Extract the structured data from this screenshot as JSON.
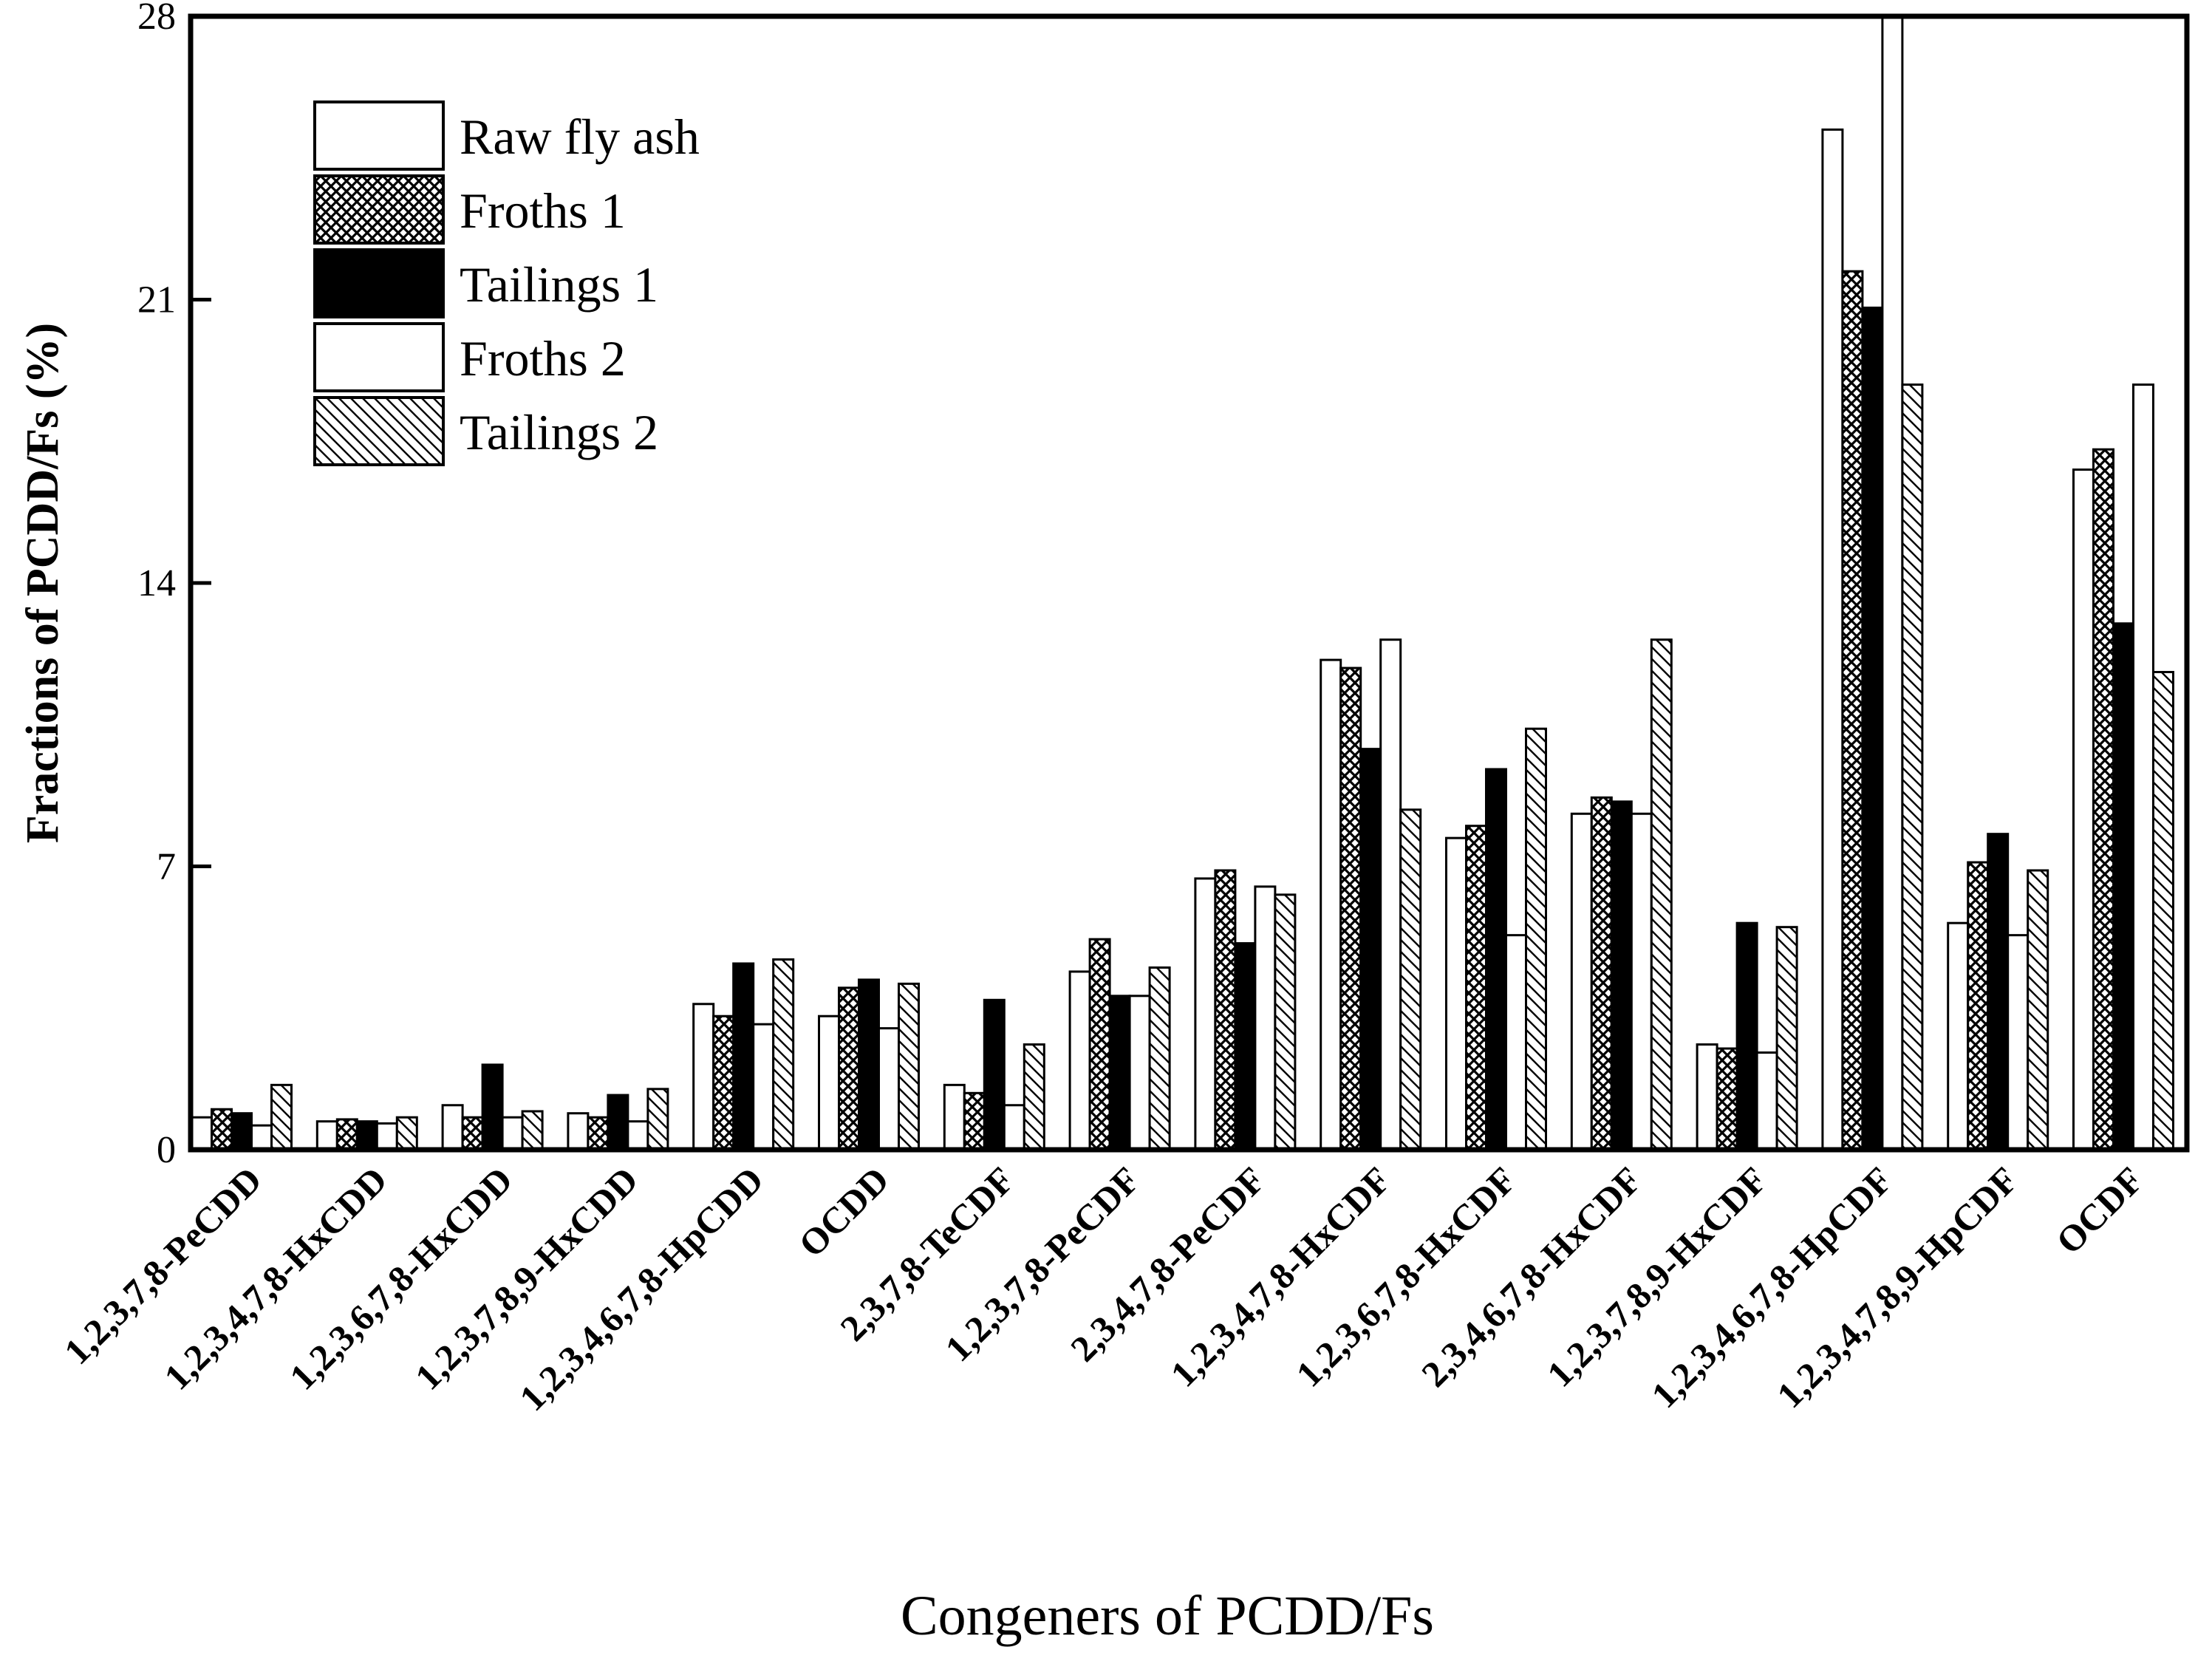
{
  "chart_data": {
    "type": "bar",
    "title": "",
    "xlabel": "Congeners of PCDD/Fs",
    "ylabel": "Fractions of PCDD/Fs (%)",
    "ylim": [
      0,
      28
    ],
    "yticks": [
      0,
      7,
      14,
      21,
      28
    ],
    "grid": false,
    "legend_position": "top-left",
    "categories": [
      "1,2,3,7,8-PeCDD",
      "1,2,3,4,7,8-HxCDD",
      "1,2,3,6,7,8-HxCDD",
      "1,2,3,7,8,9-HxCDD",
      "1,2,3,4,6,7,8-HpCDD",
      "OCDD",
      "2,3,7,8-TeCDF",
      "1,2,3,7,8-PeCDF",
      "2,3,4,7,8-PeCDF",
      "1,2,3,4,7,8-HxCDF",
      "1,2,3,6,7,8-HxCDF",
      "2,3,4,6,7,8-HxCDF",
      "1,2,3,7,8,9-HxCDF",
      "1,2,3,4,6,7,8-HpCDF",
      "1,2,3,4,7,8,9-HpCDF",
      "OCDF"
    ],
    "series": [
      {
        "name": "Raw fly ash",
        "pattern": "open",
        "values": [
          0.8,
          0.7,
          1.1,
          0.9,
          3.6,
          3.3,
          1.6,
          4.4,
          6.7,
          12.1,
          7.7,
          8.3,
          2.6,
          25.2,
          5.6,
          16.8
        ]
      },
      {
        "name": "Froths 1",
        "pattern": "crosshatch",
        "values": [
          1.0,
          0.75,
          0.8,
          0.8,
          3.3,
          4.0,
          1.4,
          5.2,
          6.9,
          11.9,
          8.0,
          8.7,
          2.5,
          21.7,
          7.1,
          17.3
        ]
      },
      {
        "name": "Tailings 1",
        "pattern": "solid",
        "values": [
          0.9,
          0.7,
          2.1,
          1.35,
          4.6,
          4.2,
          3.7,
          3.8,
          5.1,
          9.9,
          9.4,
          8.6,
          5.6,
          20.8,
          7.8,
          13.0
        ]
      },
      {
        "name": "Froths 2",
        "pattern": "open",
        "values": [
          0.6,
          0.65,
          0.8,
          0.7,
          3.1,
          3.0,
          1.1,
          3.8,
          6.5,
          12.6,
          5.3,
          8.3,
          2.4,
          28.0,
          5.3,
          18.9
        ]
      },
      {
        "name": "Tailings 2",
        "pattern": "diagonal",
        "values": [
          1.6,
          0.8,
          0.95,
          1.5,
          4.7,
          4.1,
          2.6,
          4.5,
          6.3,
          8.4,
          10.4,
          12.6,
          5.5,
          18.9,
          6.9,
          11.8
        ]
      }
    ]
  }
}
